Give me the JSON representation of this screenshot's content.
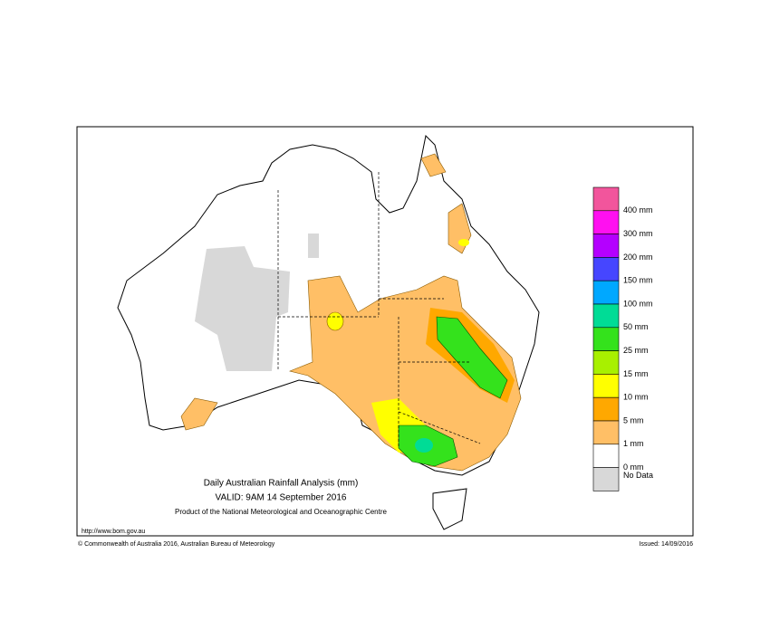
{
  "title": "Daily Australian Rainfall Analysis (mm)",
  "valid": "VALID: 9AM 14 September 2016",
  "product": "Product of the National Meteorological and Oceanographic Centre",
  "url": "http://www.bom.gov.au",
  "copyright": "© Commonwealth of Australia 2016, Australian Bureau of Meteorology",
  "issued": "Issued: 14/09/2016",
  "legend": {
    "colors": [
      "#f2559c",
      "#ff10f0",
      "#b400ff",
      "#4646ff",
      "#00a8ff",
      "#00dc96",
      "#34e21c",
      "#a8f000",
      "#ffff00",
      "#ffa800",
      "#ffbf66",
      "#ffffff",
      "#d8d8d8"
    ],
    "labels": [
      "400 mm",
      "300 mm",
      "200 mm",
      "150 mm",
      "100 mm",
      "50 mm",
      "25 mm",
      "15 mm",
      "10 mm",
      "5 mm",
      "1 mm",
      "0 mm",
      "No Data"
    ]
  }
}
